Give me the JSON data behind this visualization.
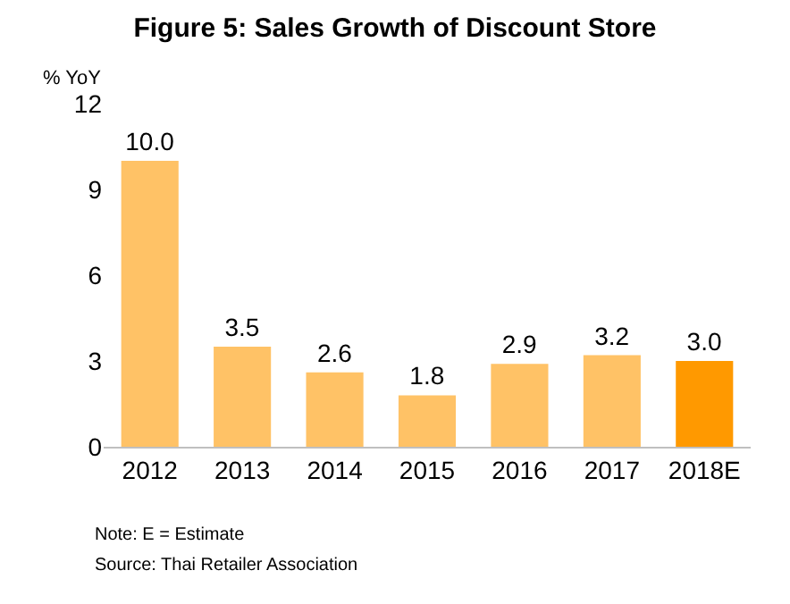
{
  "chart_data": {
    "type": "bar",
    "title": "Figure 5: Sales Growth of Discount Store",
    "ylabel": "% YoY",
    "categories": [
      "2012",
      "2013",
      "2014",
      "2015",
      "2016",
      "2017",
      "2018E"
    ],
    "values": [
      10.0,
      3.5,
      2.6,
      1.8,
      2.9,
      3.2,
      3.0
    ],
    "value_labels": [
      "10.0",
      "3.5",
      "2.6",
      "1.8",
      "2.9",
      "3.2",
      "3.0"
    ],
    "colors": [
      "#ffc266",
      "#ffc266",
      "#ffc266",
      "#ffc266",
      "#ffc266",
      "#ffc266",
      "#ff9900"
    ],
    "ylim": [
      0,
      12
    ],
    "yticks": [
      0,
      3,
      6,
      9,
      12
    ],
    "annotations": [
      "Note: E = Estimate",
      "Source: Thai Retailer Association"
    ]
  }
}
